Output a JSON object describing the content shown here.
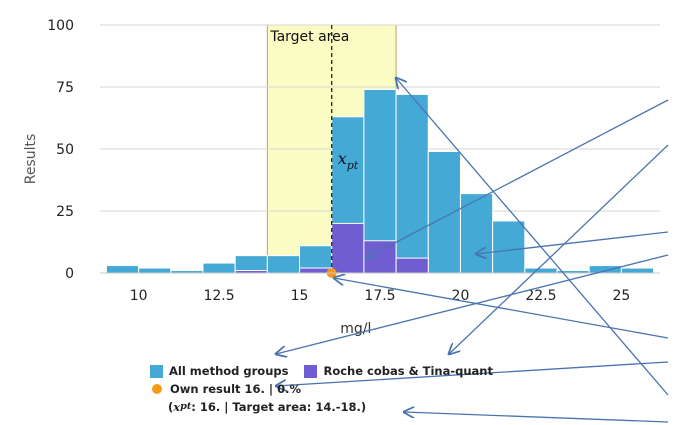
{
  "chart_data": {
    "type": "bar",
    "ylabel": "Results",
    "xlabel": "mg/l",
    "ylim": [
      0,
      100
    ],
    "xlim": [
      8.8,
      26.2
    ],
    "y_ticks": [
      0,
      25,
      50,
      75,
      100
    ],
    "x_ticks": [
      10,
      12.5,
      15,
      17.5,
      20,
      22.5,
      25
    ],
    "x_tick_labels": [
      "10",
      "12.5",
      "15",
      "17.5",
      "20",
      "22.5",
      "25"
    ],
    "y_tick_labels": [
      "0",
      "25",
      "50",
      "75",
      "100"
    ],
    "bin_edges": [
      9,
      10,
      11,
      12,
      13,
      14,
      15,
      16,
      17,
      18,
      19,
      20,
      21,
      22,
      23,
      24,
      25,
      26
    ],
    "series": [
      {
        "name": "All method groups",
        "color": "#45a9d5",
        "values": [
          3,
          2,
          1,
          4,
          7,
          7,
          11,
          63,
          74,
          72,
          49,
          32,
          21,
          2,
          1,
          3,
          2,
          1
        ]
      },
      {
        "name": "Roche cobas & Tina-quant",
        "color": "#6f5dd1",
        "values": [
          0,
          0,
          0,
          0,
          1,
          0,
          2,
          20,
          13,
          6,
          0,
          0,
          0,
          0,
          0,
          0,
          0,
          0
        ]
      }
    ],
    "target_area": {
      "from": 14,
      "to": 18,
      "label": "Target area",
      "color": "#fbfbc4"
    },
    "xpt": {
      "value": 16,
      "label": "x",
      "sub": "pt"
    },
    "own_result": {
      "value": 16,
      "color": "#f59a1a"
    },
    "grid": "horizontal"
  },
  "legend": {
    "all_groups": "All method groups",
    "roche": "Roche cobas & Tina-quant",
    "own_result": "Own result 16. | 0.%",
    "summary_open": "(",
    "summary_x": "x",
    "summary_sub": "pt",
    "summary_rest": ": 16. | Target area: 14.-18.)"
  },
  "colors": {
    "arrow": "#4a74b0",
    "own_dot": "#f59a1a",
    "all_groups": "#45a9d5",
    "roche": "#6f5dd1"
  }
}
